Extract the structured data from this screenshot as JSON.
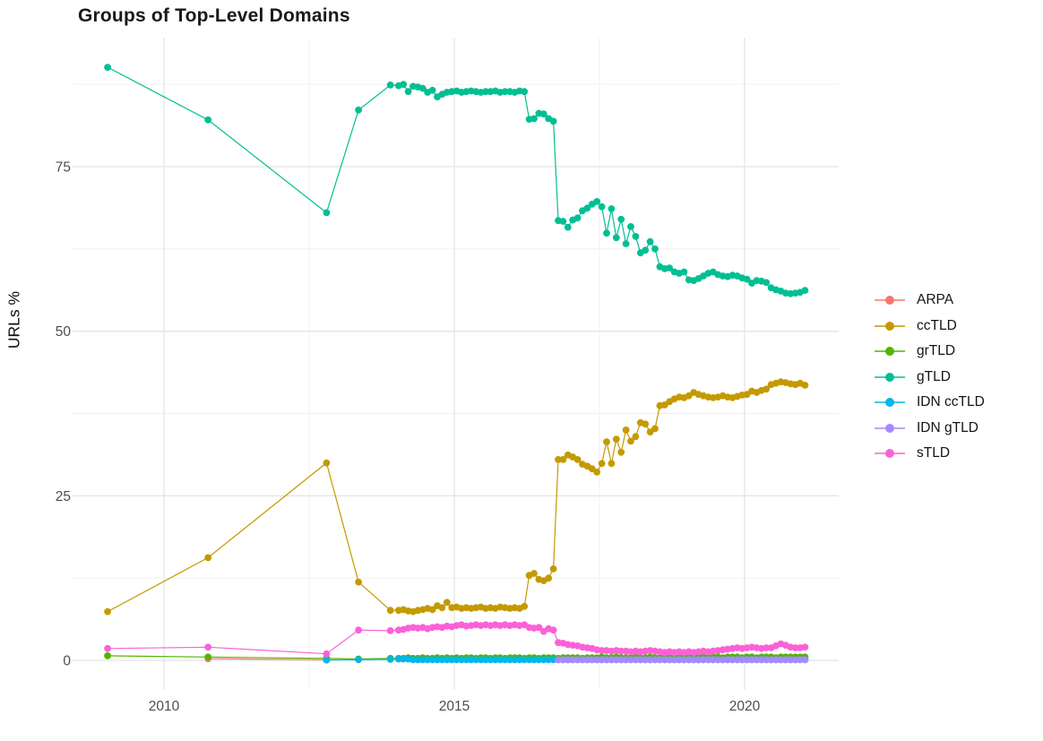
{
  "title": "Groups of Top-Level Domains",
  "y_axis": {
    "label": "URLs %",
    "ticks": [
      "0",
      "25",
      "50",
      "75"
    ]
  },
  "x_axis": {
    "ticks": [
      "2010",
      "2015",
      "2020"
    ]
  },
  "legend": {
    "items": [
      {
        "label": "ARPA",
        "color": "#F8766D"
      },
      {
        "label": "ccTLD",
        "color": "#C49A00"
      },
      {
        "label": "grTLD",
        "color": "#53B400"
      },
      {
        "label": "gTLD",
        "color": "#00BF93"
      },
      {
        "label": "IDN ccTLD",
        "color": "#00B6EB"
      },
      {
        "label": "IDN gTLD",
        "color": "#A58AFF"
      },
      {
        "label": "sTLD",
        "color": "#FB61D7"
      }
    ]
  },
  "chart_data": {
    "type": "line",
    "title": "Groups of Top-Level Domains",
    "xlabel": "",
    "ylabel": "URLs %",
    "xlim": [
      2008.4,
      2021.6
    ],
    "ylim": [
      -4.5,
      94.6
    ],
    "x_ticks": [
      2010,
      2015,
      2020
    ],
    "x_minor_ticks": [
      2012.5,
      2017.5
    ],
    "y_ticks": [
      0,
      25,
      50,
      75
    ],
    "y_minor_ticks": [
      12.5,
      37.5,
      62.5,
      87.5
    ],
    "grid": "on",
    "legend_position": "right",
    "series": [
      {
        "name": "ARPA",
        "color": "#F8766D",
        "points": [
          [
            2010.76,
            0.25
          ],
          [
            2012.8,
            0.1
          ]
        ]
      },
      {
        "name": "ccTLD",
        "color": "#C49A00",
        "points": [
          [
            2009.03,
            7.4
          ],
          [
            2010.76,
            15.6
          ],
          [
            2012.8,
            30.0
          ],
          [
            2013.35,
            11.9
          ],
          [
            2013.9,
            7.6
          ]
        ],
        "monthly_start": 2014.04,
        "monthly": [
          7.6,
          7.7,
          7.5,
          7.4,
          7.6,
          7.7,
          7.9,
          7.7,
          8.3,
          8.0,
          8.8,
          8.0,
          8.1,
          7.9,
          8.0,
          7.9,
          8.0,
          8.1,
          7.9,
          8.0,
          7.9,
          8.1,
          8.0,
          7.9,
          8.0,
          7.9,
          8.2,
          12.9,
          13.2,
          12.3,
          12.1,
          12.5,
          13.9,
          30.5,
          30.5,
          31.2,
          30.9,
          30.5,
          29.8,
          29.5,
          29.1,
          28.6,
          29.9,
          33.2,
          29.9,
          33.6,
          31.6,
          35.0,
          33.3,
          34.0,
          36.1,
          35.9,
          34.7,
          35.2,
          38.7,
          38.8,
          39.3,
          39.7,
          40.0,
          39.9,
          40.2,
          40.7,
          40.4,
          40.2,
          40.0,
          39.9,
          40.0,
          40.2,
          40.0,
          39.9,
          40.1,
          40.3,
          40.4,
          40.9,
          40.7,
          41.0,
          41.2,
          41.9,
          42.1,
          42.3,
          42.2,
          42.0,
          41.9,
          42.1,
          41.8
        ]
      },
      {
        "name": "grTLD",
        "color": "#53B400",
        "points": [
          [
            2009.03,
            0.7
          ],
          [
            2010.76,
            0.5
          ],
          [
            2012.8,
            0.3
          ],
          [
            2013.35,
            0.2
          ],
          [
            2013.9,
            0.3
          ]
        ],
        "monthly_start": 2014.04,
        "monthly": [
          0.3,
          0.3,
          0.4,
          0.3,
          0.3,
          0.4,
          0.3,
          0.3,
          0.4,
          0.3,
          0.4,
          0.3,
          0.4,
          0.3,
          0.4,
          0.4,
          0.3,
          0.4,
          0.4,
          0.3,
          0.4,
          0.4,
          0.3,
          0.4,
          0.4,
          0.4,
          0.3,
          0.4,
          0.4,
          0.3,
          0.4,
          0.4,
          0.4,
          0.3,
          0.4,
          0.4,
          0.4,
          0.4,
          0.3,
          0.4,
          0.4,
          0.4,
          0.5,
          0.4,
          0.4,
          0.5,
          0.4,
          0.4,
          0.4,
          0.5,
          0.4,
          0.4,
          0.5,
          0.4,
          0.4,
          0.5,
          0.4,
          0.5,
          0.4,
          0.5,
          0.5,
          0.4,
          0.5,
          0.5,
          0.4,
          0.5,
          0.5,
          0.4,
          0.5,
          0.5,
          0.5,
          0.4,
          0.5,
          0.5,
          0.4,
          0.5,
          0.5,
          0.5,
          0.4,
          0.5,
          0.5,
          0.5,
          0.5,
          0.5,
          0.5
        ]
      },
      {
        "name": "gTLD",
        "color": "#00BF93",
        "points": [
          [
            2009.03,
            90.1
          ],
          [
            2010.76,
            82.1
          ],
          [
            2012.8,
            68.0
          ],
          [
            2013.35,
            83.6
          ],
          [
            2013.9,
            87.4
          ]
        ],
        "monthly_start": 2014.04,
        "monthly": [
          87.3,
          87.5,
          86.4,
          87.2,
          87.1,
          86.9,
          86.3,
          86.6,
          85.6,
          86.0,
          86.3,
          86.4,
          86.5,
          86.3,
          86.4,
          86.5,
          86.4,
          86.3,
          86.4,
          86.4,
          86.5,
          86.3,
          86.4,
          86.4,
          86.3,
          86.5,
          86.4,
          82.2,
          82.3,
          83.1,
          83.0,
          82.3,
          81.9,
          66.8,
          66.7,
          65.8,
          66.9,
          67.2,
          68.3,
          68.7,
          69.3,
          69.7,
          68.9,
          64.9,
          68.6,
          64.2,
          67.0,
          63.3,
          65.9,
          64.4,
          61.9,
          62.3,
          63.6,
          62.5,
          59.8,
          59.5,
          59.6,
          59.0,
          58.8,
          59.0,
          57.8,
          57.7,
          58.0,
          58.4,
          58.8,
          59.0,
          58.6,
          58.4,
          58.3,
          58.5,
          58.4,
          58.1,
          57.9,
          57.3,
          57.7,
          57.6,
          57.4,
          56.6,
          56.3,
          56.1,
          55.8,
          55.7,
          55.8,
          55.9,
          56.2
        ]
      },
      {
        "name": "IDN ccTLD",
        "color": "#00B6EB",
        "points": [
          [
            2012.8,
            0.05
          ],
          [
            2013.35,
            0.1
          ],
          [
            2013.9,
            0.15
          ]
        ],
        "monthly_start": 2014.04,
        "monthly": [
          0.2,
          0.2,
          0.2,
          0.1,
          0.1,
          0.1,
          0.1,
          0.1,
          0.1,
          0.1,
          0.1,
          0.1,
          0.1,
          0.1,
          0.1,
          0.1,
          0.1,
          0.1,
          0.1,
          0.1,
          0.1,
          0.1,
          0.1,
          0.1,
          0.1,
          0.1,
          0.1,
          0.1,
          0.1,
          0.1,
          0.1,
          0.1,
          0.1,
          0.1,
          0.1,
          0.1,
          0.1,
          0.1,
          0.1,
          0.1,
          0.1,
          0.1,
          0.1,
          0.1,
          0.1,
          0.1,
          0.1,
          0.1,
          0.1,
          0.1,
          0.1,
          0.1,
          0.1,
          0.1,
          0.1,
          0.1,
          0.1,
          0.1,
          0.1,
          0.1,
          0.1,
          0.1,
          0.1,
          0.1,
          0.1,
          0.1,
          0.1,
          0.1,
          0.1,
          0.1,
          0.1,
          0.1,
          0.1,
          0.1,
          0.1,
          0.1,
          0.1,
          0.1,
          0.1,
          0.1,
          0.1,
          0.1,
          0.1,
          0.1,
          0.1
        ]
      },
      {
        "name": "IDN gTLD",
        "color": "#A58AFF",
        "points": [],
        "monthly_start": 2016.79,
        "monthly": [
          0.1,
          0.1,
          0.1,
          0.1,
          0.1,
          0.1,
          0.1,
          0.1,
          0.1,
          0.1,
          0.1,
          0.1,
          0.1,
          0.1,
          0.1,
          0.1,
          0.1,
          0.1,
          0.1,
          0.1,
          0.1,
          0.1,
          0.1,
          0.1,
          0.1,
          0.1,
          0.1,
          0.1,
          0.1,
          0.1,
          0.1,
          0.1,
          0.1,
          0.1,
          0.1,
          0.1,
          0.1,
          0.1,
          0.1,
          0.1,
          0.1,
          0.1,
          0.1,
          0.1,
          0.1,
          0.1,
          0.1,
          0.1,
          0.1,
          0.1,
          0.1,
          0.1
        ]
      },
      {
        "name": "sTLD",
        "color": "#FB61D7",
        "points": [
          [
            2009.03,
            1.8
          ],
          [
            2010.76,
            2.0
          ],
          [
            2012.8,
            1.0
          ],
          [
            2013.35,
            4.6
          ],
          [
            2013.9,
            4.5
          ]
        ],
        "monthly_start": 2014.04,
        "monthly": [
          4.6,
          4.7,
          4.9,
          5.0,
          4.9,
          5.0,
          4.8,
          5.0,
          5.1,
          5.0,
          5.2,
          5.1,
          5.3,
          5.4,
          5.2,
          5.3,
          5.4,
          5.3,
          5.4,
          5.3,
          5.4,
          5.3,
          5.4,
          5.3,
          5.4,
          5.3,
          5.4,
          5.0,
          4.9,
          5.0,
          4.4,
          4.8,
          4.6,
          2.7,
          2.6,
          2.4,
          2.3,
          2.2,
          2.0,
          1.9,
          1.8,
          1.6,
          1.5,
          1.5,
          1.4,
          1.5,
          1.4,
          1.4,
          1.3,
          1.4,
          1.3,
          1.4,
          1.5,
          1.4,
          1.3,
          1.2,
          1.3,
          1.2,
          1.3,
          1.2,
          1.3,
          1.2,
          1.3,
          1.4,
          1.3,
          1.4,
          1.5,
          1.6,
          1.7,
          1.8,
          1.9,
          1.8,
          1.9,
          2.0,
          1.9,
          1.8,
          1.9,
          1.9,
          2.2,
          2.5,
          2.3,
          2.0,
          1.9,
          1.9,
          2.0
        ]
      }
    ]
  }
}
